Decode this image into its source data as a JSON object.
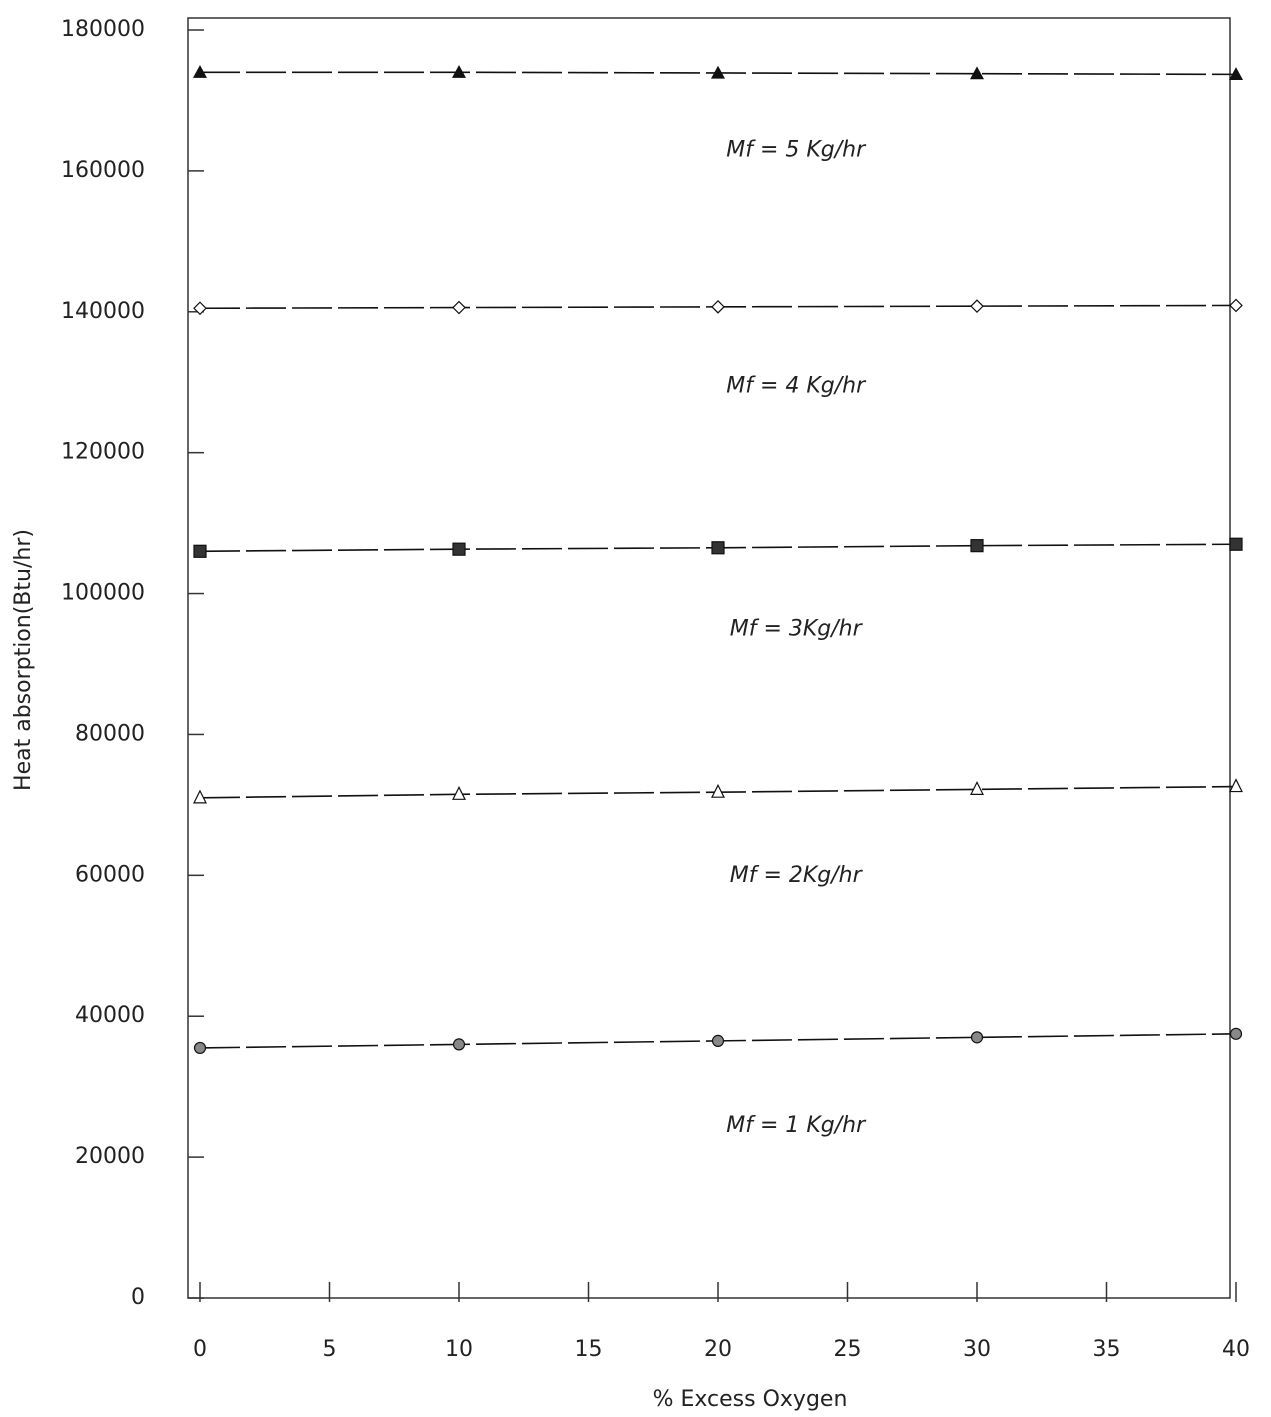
{
  "chart_data": {
    "type": "line",
    "x_label": "% Excess Oxygen",
    "y_label": "Heat absorption(Btu/hr)",
    "x": [
      0,
      10,
      20,
      30,
      40
    ],
    "series": [
      {
        "name": "Mf = 5 Kg/hr",
        "color": "#111111",
        "marker": "triangle-filled",
        "values": [
          174000,
          174000,
          173900,
          173800,
          173700
        ]
      },
      {
        "name": "Mf = 4 Kg/hr",
        "color": "#111111",
        "marker": "diamond",
        "values": [
          140500,
          140600,
          140700,
          140800,
          140900
        ]
      },
      {
        "name": "Mf = 3Kg/hr",
        "color": "#111111",
        "marker": "square",
        "values": [
          106000,
          106300,
          106500,
          106800,
          107000
        ]
      },
      {
        "name": "Mf = 2Kg/hr",
        "color": "#111111",
        "marker": "triangle-open",
        "values": [
          71000,
          71500,
          71800,
          72200,
          72600
        ]
      },
      {
        "name": "Mf = 1 Kg/hr",
        "color": "#111111",
        "marker": "circle-cross",
        "values": [
          35500,
          36000,
          36500,
          37000,
          37500
        ]
      }
    ],
    "xlim": [
      0,
      40
    ],
    "xticks": [
      0,
      5,
      10,
      15,
      20,
      25,
      30,
      35,
      40
    ],
    "ylim": [
      0,
      180000
    ],
    "yticks": [
      0,
      20000,
      40000,
      60000,
      80000,
      100000,
      120000,
      140000,
      160000,
      180000
    ],
    "grid": false
  }
}
